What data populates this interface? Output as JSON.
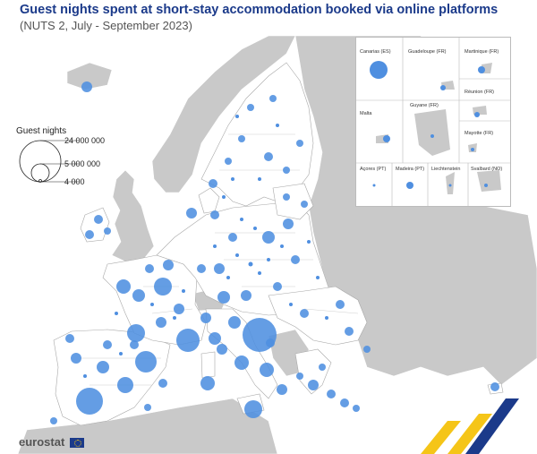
{
  "header": {
    "title": "Guest nights spent at short-stay accommodation booked via online platforms",
    "subtitle": "(NUTS 2, July - September 2023)"
  },
  "legend": {
    "title": "Guest nights",
    "values": [
      "24 000 000",
      "5 000 000",
      "4 000"
    ]
  },
  "insets": {
    "canarias": "Canarias (ES)",
    "guadeloupe": "Guadeloupe (FR)",
    "martinique": "Martinique (FR)",
    "reunion": "Réunion (FR)",
    "malta": "Malta",
    "guyane": "Guyane (FR)",
    "mayotte": "Mayotte (FR)",
    "acores": "Açores (PT)",
    "madeira": "Madeira (PT)",
    "liechtenstein": "Liechtenstein",
    "svalbard": "Svalbard (NO)"
  },
  "footer": {
    "logo": "eurostat"
  },
  "colors": {
    "bubble": "#4f8fe0",
    "eu_land": "#ffffff",
    "non_eu_land": "#c8c8c8",
    "sea": "#ffffff",
    "title": "#1b3a8a"
  }
}
